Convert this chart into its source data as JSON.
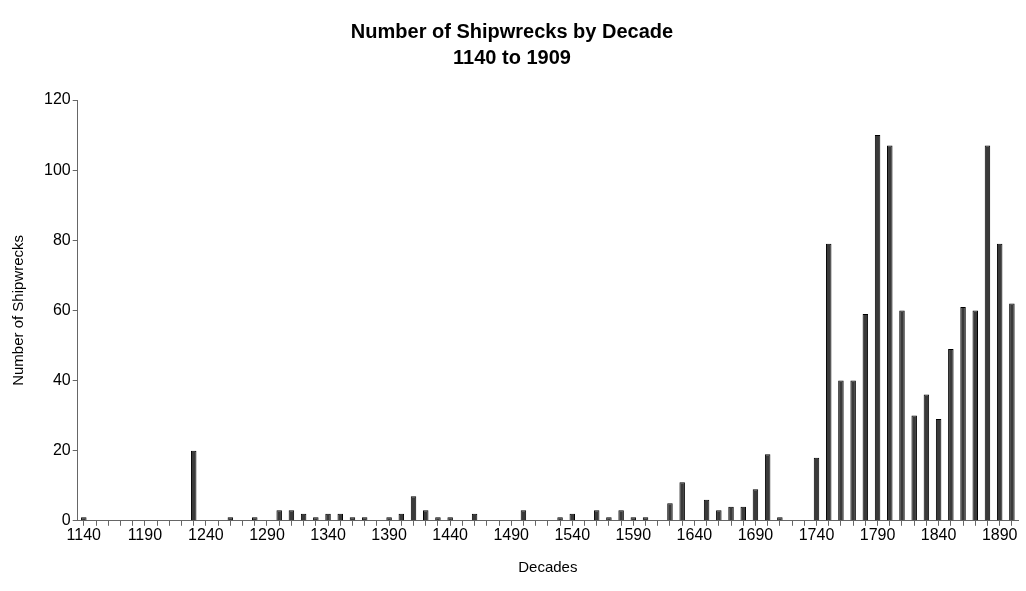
{
  "chart_data": {
    "type": "bar",
    "title": "Number of Shipwrecks by Decade",
    "subtitle": "1140 to 1909",
    "xlabel": "Decades",
    "ylabel": "Number of Shipwrecks",
    "categories": [
      "1140",
      null,
      null,
      null,
      null,
      "1190",
      null,
      null,
      null,
      null,
      "1240",
      null,
      null,
      null,
      null,
      "1290",
      null,
      null,
      null,
      null,
      "1340",
      null,
      null,
      null,
      null,
      "1390",
      null,
      null,
      null,
      null,
      "1440",
      null,
      null,
      null,
      null,
      "1490",
      null,
      null,
      null,
      null,
      "1540",
      null,
      null,
      null,
      null,
      "1590",
      null,
      null,
      null,
      null,
      "1640",
      null,
      null,
      null,
      null,
      "1690",
      null,
      null,
      null,
      null,
      "1740",
      null,
      null,
      null,
      null,
      "1790",
      null,
      null,
      null,
      null,
      "1840",
      null,
      null,
      null,
      null,
      "1890",
      null
    ],
    "values": [
      1,
      0,
      0,
      0,
      0,
      0,
      0,
      0,
      0,
      20,
      0,
      0,
      1,
      0,
      1,
      0,
      3,
      3,
      2,
      1,
      2,
      2,
      1,
      1,
      0,
      1,
      2,
      7,
      3,
      1,
      1,
      0,
      2,
      0,
      0,
      0,
      3,
      0,
      0,
      1,
      2,
      0,
      3,
      1,
      3,
      1,
      1,
      0,
      5,
      11,
      0,
      6,
      3,
      4,
      4,
      9,
      19,
      1,
      0,
      0,
      18,
      79,
      40,
      40,
      59,
      110,
      107,
      60,
      30,
      36,
      29,
      49,
      61,
      60,
      107,
      79,
      62
    ],
    "color": "#3a3a3a",
    "ylim": [
      0,
      120
    ],
    "yticks": [
      0,
      20,
      40,
      60,
      80,
      100,
      120
    ],
    "grid": false,
    "legend": false
  }
}
